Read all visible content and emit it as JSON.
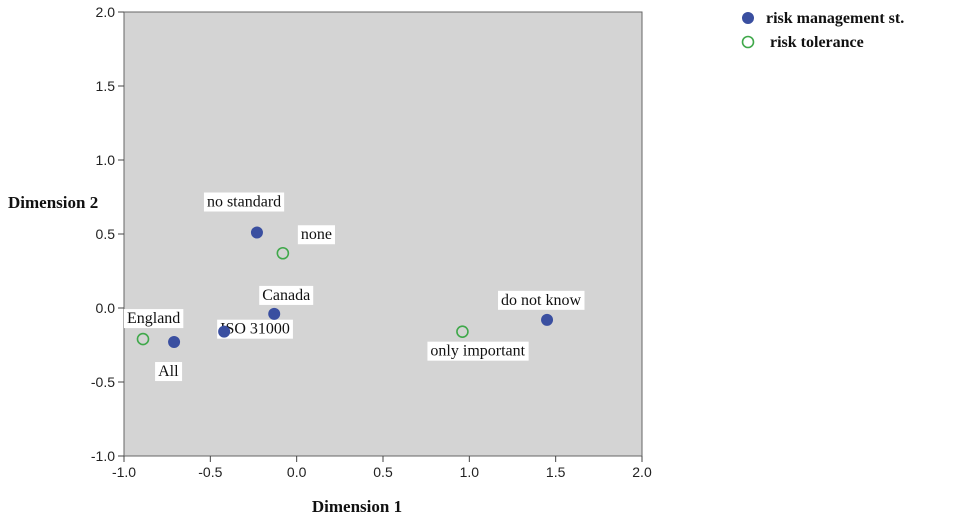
{
  "chart_data": {
    "type": "scatter",
    "xlabel": "Dimension 1",
    "ylabel": "Dimension 2",
    "xlim": [
      -1.0,
      2.0
    ],
    "ylim": [
      -1.0,
      2.0
    ],
    "xticks": [
      "-1.0",
      "-0.5",
      "0.0",
      "0.5",
      "1.0",
      "1.5",
      "2.0"
    ],
    "yticks": [
      "-1.0",
      "-0.5",
      "0.0",
      "0.5",
      "1.0",
      "1.5",
      "2.0"
    ],
    "grid": false,
    "plot_background": "#d4d4d4",
    "legend_position": "top-right outside",
    "series": [
      {
        "name": "risk management st.",
        "marker": "filled-circle",
        "color": "#3a4fa0",
        "points": [
          {
            "x": -0.23,
            "y": 0.51,
            "label": "no standard"
          },
          {
            "x": -0.13,
            "y": -0.04,
            "label": "Canada"
          },
          {
            "x": -0.42,
            "y": -0.16,
            "label": "ISO 31000"
          },
          {
            "x": -0.71,
            "y": -0.23,
            "label": "All"
          },
          {
            "x": 1.45,
            "y": -0.08,
            "label": "do not know"
          }
        ]
      },
      {
        "name": "risk tolerance",
        "marker": "open-circle",
        "color": "#3fa84a",
        "points": [
          {
            "x": -0.08,
            "y": 0.37,
            "label": "none"
          },
          {
            "x": -0.89,
            "y": -0.21,
            "label": "England"
          },
          {
            "x": 0.96,
            "y": -0.16,
            "label": "only important"
          }
        ]
      }
    ]
  }
}
